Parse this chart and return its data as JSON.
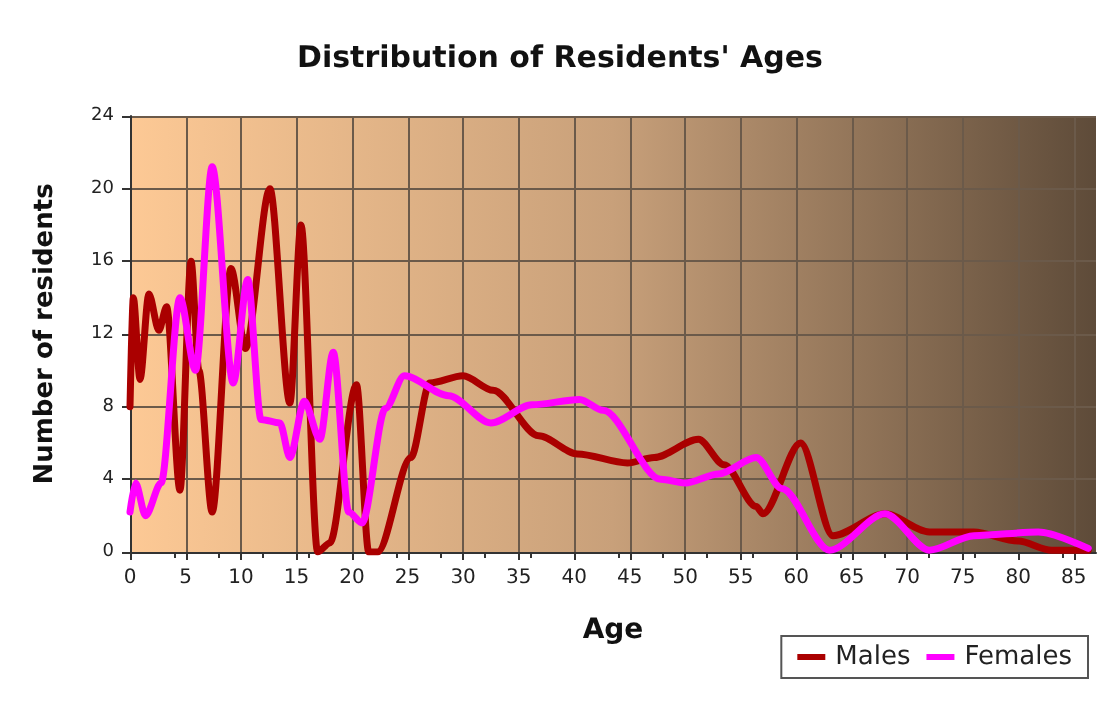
{
  "chart_data": {
    "type": "line",
    "title": "Distribution of Residents' Ages",
    "xlabel": "Age",
    "ylabel": "Number of residents",
    "xlim": [
      0,
      87
    ],
    "xticks": [
      0,
      5,
      10,
      15,
      20,
      25,
      30,
      35,
      40,
      45,
      50,
      55,
      60,
      65,
      70,
      75,
      80,
      85
    ],
    "ylim": [
      0,
      24
    ],
    "yticks": [
      0,
      4,
      8,
      12,
      16,
      20,
      24
    ],
    "grid": true,
    "legend": "bottom right",
    "marker": "none",
    "line_style": "solid",
    "series": [
      {
        "name": "Males",
        "color": "#aa0000",
        "x": [
          0,
          0.3,
          0.9,
          1.7,
          2.6,
          3.3,
          4.5,
          5.5,
          6.2,
          7.4,
          9.1,
          10.4,
          12.6,
          14.4,
          15.4,
          16.9,
          18,
          20.4,
          21.5,
          22.3,
          25.3,
          27,
          30,
          32.7,
          36.8,
          40.3,
          44.8,
          47.2,
          51.2,
          53.5,
          56.4,
          57,
          60.4,
          63.3,
          68,
          72,
          76,
          80,
          83,
          86.3
        ],
        "values": [
          8,
          14,
          9.5,
          14.2,
          12.2,
          13.5,
          3.4,
          16,
          10,
          2.2,
          15.6,
          11.2,
          20,
          8.2,
          18,
          0,
          0.5,
          9.2,
          0,
          0,
          5.2,
          9.3,
          9.7,
          8.9,
          6.4,
          5.4,
          4.9,
          5.2,
          6.2,
          4.8,
          2.5,
          2.1,
          6,
          0.9,
          2.1,
          1.1,
          1.1,
          0.6,
          0.1,
          0.1
        ]
      },
      {
        "name": "Females",
        "color": "#ff00ff",
        "x": [
          0,
          0.5,
          1.4,
          2.8,
          4.5,
          5.9,
          7.4,
          9.3,
          10.6,
          11.8,
          13.5,
          14.4,
          15.7,
          17.1,
          18.3,
          19.7,
          20.9,
          23,
          24.7,
          28.7,
          32.5,
          36.2,
          40.5,
          42.6,
          47.8,
          50,
          53,
          56.4,
          58.7,
          63,
          68,
          72,
          76,
          81.8,
          86.3
        ],
        "values": [
          2.2,
          3.8,
          2,
          3.8,
          14,
          10,
          21.2,
          9.3,
          15,
          7.3,
          7.1,
          5.2,
          8.3,
          6.2,
          11,
          2.2,
          1.6,
          7.9,
          9.7,
          8.6,
          7.1,
          8.1,
          8.4,
          7.8,
          4,
          3.8,
          4.3,
          5.2,
          3.5,
          0.1,
          2.1,
          0.1,
          0.9,
          1.1,
          0.2
        ]
      }
    ]
  }
}
